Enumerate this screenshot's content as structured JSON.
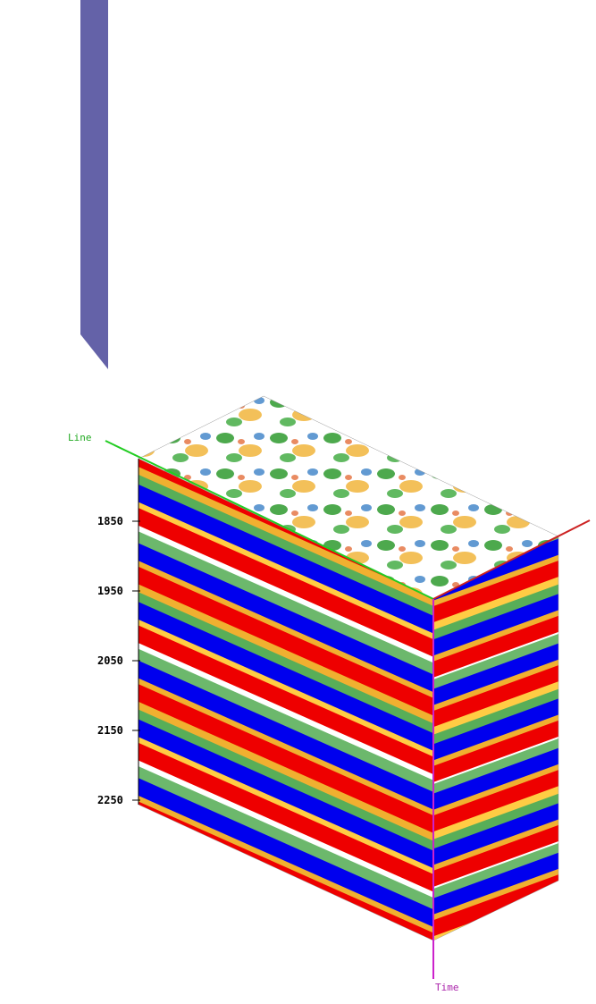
{
  "accent": {
    "bar": "#6462a8"
  },
  "axes": {
    "line": {
      "label": "Line",
      "color": "#22cc22"
    },
    "time": {
      "label": "Time",
      "color": "#cc22cc"
    },
    "crossline": {
      "label": "",
      "color": "#cc2222"
    }
  },
  "time_ticks": [
    "1850",
    "1950",
    "2050",
    "2150",
    "2250"
  ],
  "palette": {
    "positive_strong": "#0000ee",
    "negative_strong": "#ee0000",
    "mid_a": "#2e9a2e",
    "mid_b": "#f0b030",
    "background": "#ffffff"
  }
}
